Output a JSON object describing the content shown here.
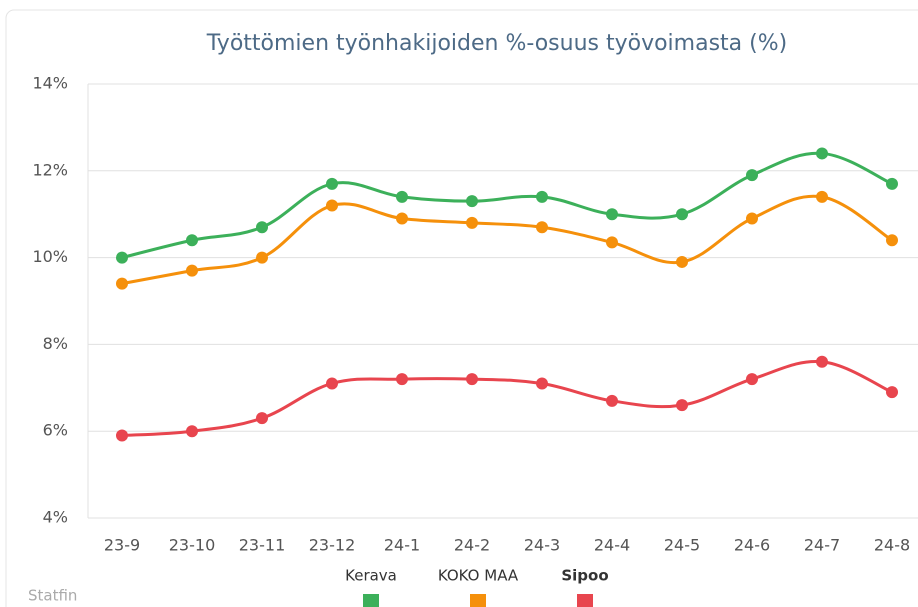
{
  "chart_data": {
    "type": "line",
    "title": "Työttömien työnhakijoiden %-osuus työvoimasta (%)",
    "categories": [
      "23-9",
      "23-10",
      "23-11",
      "23-12",
      "24-1",
      "24-2",
      "24-3",
      "24-4",
      "24-5",
      "24-6",
      "24-7",
      "24-8"
    ],
    "series": [
      {
        "name": "Kerava",
        "color": "#3cb05a",
        "values": [
          10.0,
          10.4,
          10.7,
          11.7,
          11.4,
          11.3,
          11.4,
          11.0,
          11.0,
          11.9,
          12.4,
          11.7
        ]
      },
      {
        "name": "KOKO MAA",
        "color": "#f5900b",
        "values": [
          9.4,
          9.7,
          10.0,
          11.2,
          10.9,
          10.8,
          10.7,
          10.35,
          9.9,
          10.9,
          11.4,
          10.4
        ]
      },
      {
        "name": "Sipoo",
        "color": "#e8454e",
        "values": [
          5.9,
          6.0,
          6.3,
          7.1,
          7.2,
          7.2,
          7.1,
          6.7,
          6.6,
          7.2,
          7.6,
          6.9
        ]
      }
    ],
    "ylim": [
      4,
      14
    ],
    "yticks": [
      {
        "value": 4,
        "label": "4%"
      },
      {
        "value": 6,
        "label": "6%"
      },
      {
        "value": 8,
        "label": "8%"
      },
      {
        "value": 10,
        "label": "10%"
      },
      {
        "value": 12,
        "label": "12%"
      },
      {
        "value": 14,
        "label": "14%"
      }
    ],
    "grid": true,
    "legend": "bottom",
    "credits": "Statfin"
  }
}
